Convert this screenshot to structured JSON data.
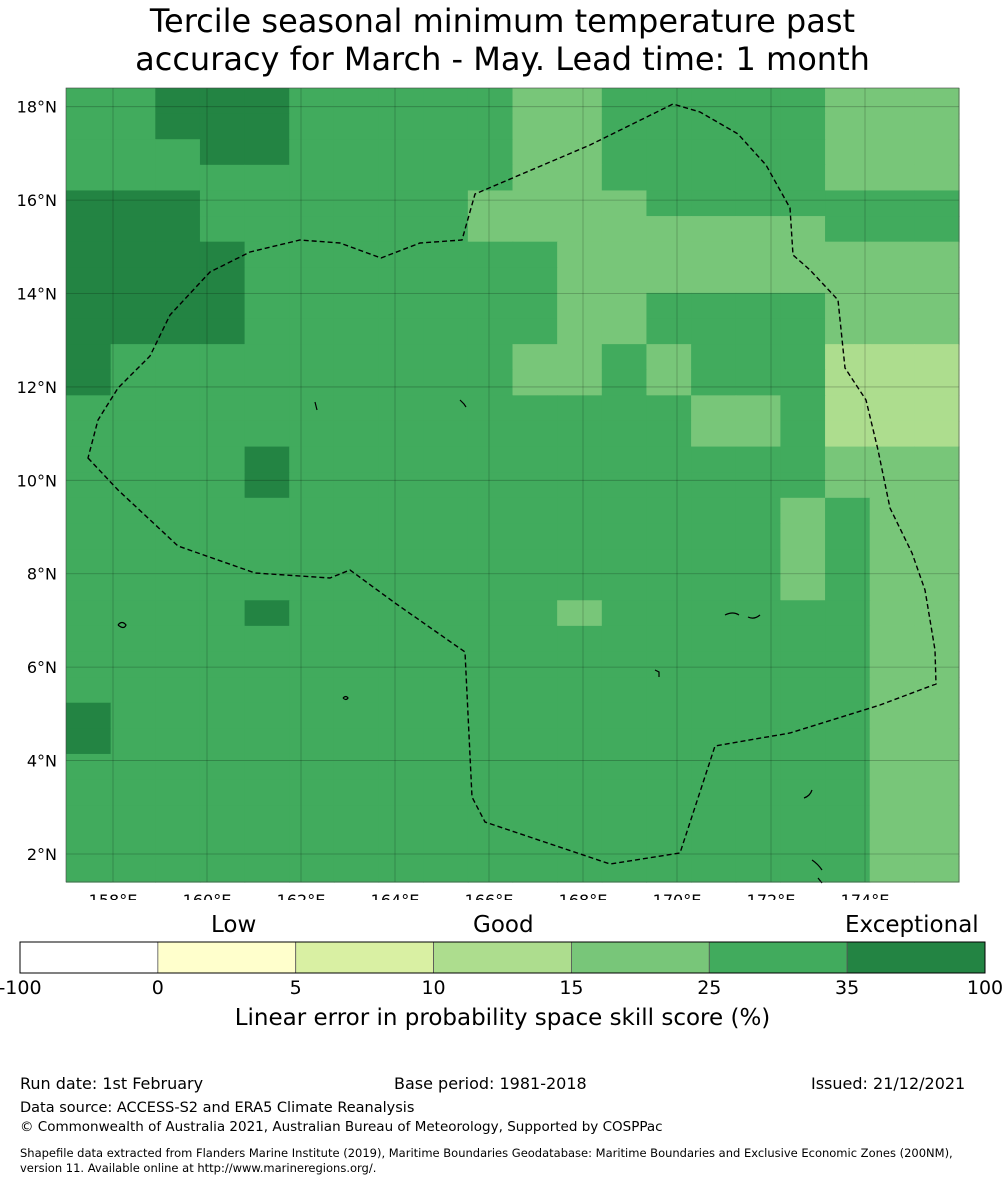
{
  "title": {
    "line1": "Tercile seasonal minimum temperature past",
    "line2": "accuracy for March - May. Lead time: 1 month"
  },
  "map": {
    "lat_labels": [
      "18°N",
      "16°N",
      "14°N",
      "12°N",
      "10°N",
      "8°N",
      "6°N",
      "4°N",
      "2°N"
    ],
    "lon_labels": [
      "158°E",
      "160°E",
      "162°E",
      "164°E",
      "166°E",
      "168°E",
      "170°E",
      "172°E",
      "174°E"
    ],
    "lat_range": [
      1.4,
      18.4
    ],
    "lon_range": [
      157.0,
      176.0
    ],
    "palette": {
      "1": "#d9f0a3",
      "2": "#addd8e",
      "3": "#78c679",
      "4": "#41ab5d",
      "5": "#238443"
    },
    "grid_cells": [
      "44555444443344444333",
      "44555444443344444333",
      "44455444443344444333",
      "44444444443344444333",
      "55544444433334444444",
      "55544444433333333444",
      "55554444444333333333",
      "55554444444333333333",
      "55554444444334444333",
      "55554444444334444333",
      "54444444443343444222",
      "54444444443343444222",
      "44444444444444334222",
      "44444444444444334222",
      "44445444444444444333",
      "44445444444444444333",
      "44444444444444443433",
      "44444444444444443433",
      "44444444444444443433",
      "44444444444444443433",
      "44445444444344444433",
      "44444444444444444433",
      "44444444444444444433",
      "44444444444444444433",
      "54444444444444444433",
      "54444444444444444433",
      "44444444444444444433",
      "44444444444444444433",
      "44444444444444444433",
      "44444444444444444433",
      "44444444444444444433"
    ]
  },
  "colorbar": {
    "categories": [
      "Low",
      "Good",
      "Exceptional"
    ],
    "ticks": [
      "-100",
      "0",
      "5",
      "10",
      "15",
      "25",
      "35",
      "100"
    ],
    "colors": [
      "#ffffff",
      "#ffffcc",
      "#d9f0a3",
      "#addd8e",
      "#78c679",
      "#41ab5d",
      "#238443"
    ],
    "label": "Linear error in probability space skill score (%)"
  },
  "footer": {
    "run_date": "Run date: 1st February",
    "base_period": "Base period: 1981-2018",
    "issued": "Issued: 21/12/2021",
    "data_source": "Data source: ACCESS-S2 and ERA5 Climate Reanalysis",
    "copyright": "© Commonwealth of Australia 2021, Australian Bureau of Meteorology, Supported by COSPPac",
    "shapefile_line1": "Shapefile data extracted from Flanders Marine Institute (2019), Maritime Boundaries Geodatabase: Maritime Boundaries and Exclusive Economic Zones (200NM),",
    "shapefile_line2": "version 11. Available online at http://www.marineregions.org/."
  }
}
